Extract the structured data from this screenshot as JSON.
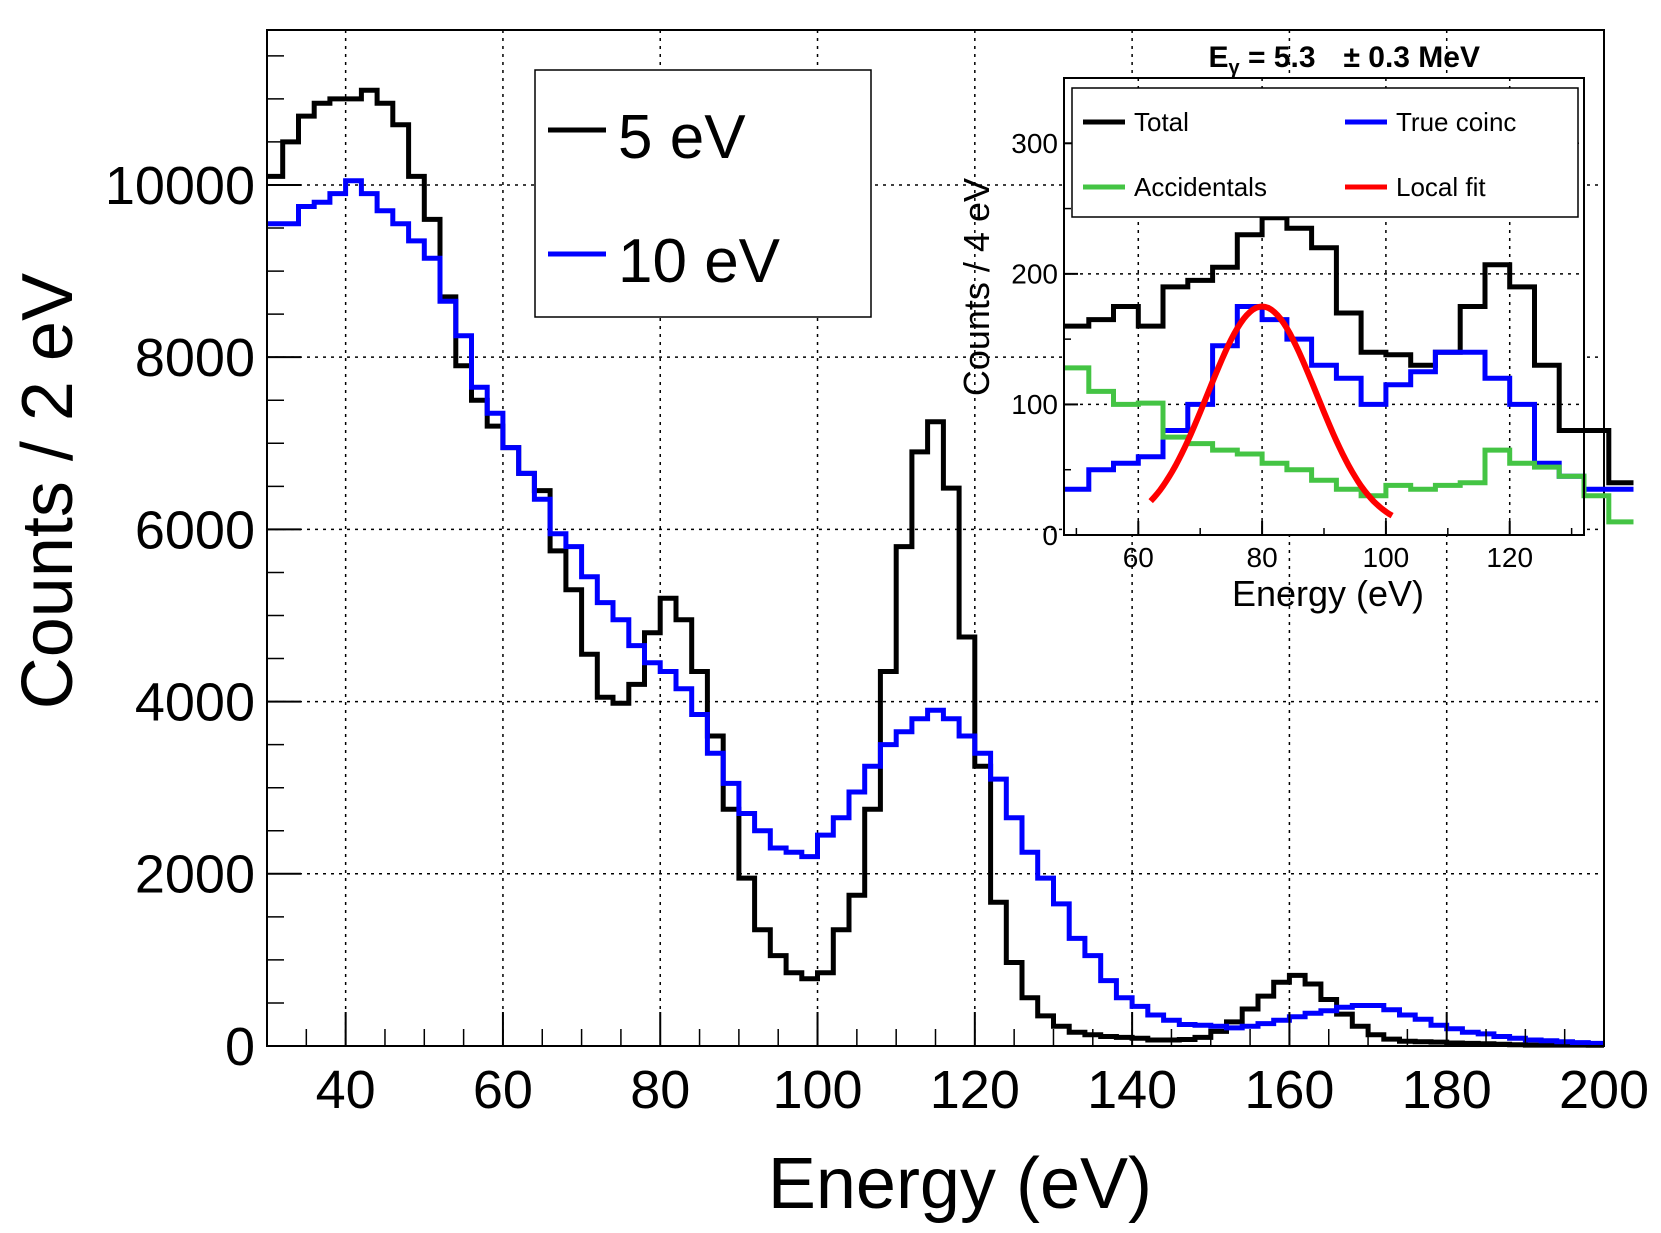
{
  "chart_data": [
    {
      "type": "step",
      "title": "",
      "xlabel": "Energy (eV)",
      "ylabel": "Counts / 2 eV",
      "xlim": [
        30,
        200
      ],
      "ylim": [
        0,
        11800
      ],
      "x_ticks": [
        40,
        60,
        80,
        100,
        120,
        140,
        160,
        180,
        200
      ],
      "x_tick_labels": [
        "40",
        "60",
        "80",
        "100",
        "120",
        "140",
        "160",
        "180",
        "200"
      ],
      "y_ticks": [
        0,
        2000,
        4000,
        6000,
        8000,
        10000
      ],
      "y_tick_labels": [
        "0",
        "2000",
        "4000",
        "6000",
        "8000",
        "10000"
      ],
      "grid": true,
      "legend_position": "top-center",
      "bin_width": 2,
      "bin_start": 30,
      "series": [
        {
          "name": "5 eV",
          "color": "#000000",
          "values": [
            10100,
            10500,
            10800,
            10950,
            11000,
            11000,
            11100,
            10950,
            10700,
            10100,
            9600,
            8700,
            7900,
            7500,
            7200,
            6950,
            6650,
            6450,
            5750,
            5300,
            4550,
            4050,
            3980,
            4200,
            4800,
            5200,
            4950,
            4350,
            3600,
            2750,
            1950,
            1350,
            1050,
            850,
            780,
            850,
            1350,
            1750,
            2750,
            4350,
            5800,
            6900,
            7250,
            6480,
            4750,
            3250,
            1670,
            970,
            560,
            350,
            230,
            160,
            130,
            110,
            100,
            90,
            70,
            70,
            75,
            100,
            170,
            280,
            430,
            580,
            740,
            820,
            720,
            540,
            370,
            230,
            130,
            80,
            55,
            50,
            45,
            35,
            30,
            25,
            20,
            15,
            10,
            10,
            10,
            10,
            8
          ]
        },
        {
          "name": "10 eV",
          "color": "#0000ff",
          "values": [
            9550,
            9550,
            9750,
            9800,
            9900,
            10050,
            9900,
            9700,
            9550,
            9350,
            9150,
            8650,
            8250,
            7650,
            7350,
            6950,
            6650,
            6350,
            5950,
            5800,
            5450,
            5150,
            4950,
            4650,
            4450,
            4350,
            4150,
            3850,
            3400,
            3050,
            2700,
            2500,
            2300,
            2250,
            2200,
            2450,
            2650,
            2950,
            3250,
            3500,
            3650,
            3800,
            3900,
            3800,
            3600,
            3400,
            3100,
            2650,
            2250,
            1950,
            1650,
            1250,
            1050,
            760,
            560,
            460,
            360,
            300,
            250,
            240,
            230,
            210,
            230,
            260,
            300,
            340,
            380,
            410,
            450,
            470,
            470,
            420,
            360,
            310,
            240,
            200,
            160,
            140,
            110,
            90,
            70,
            60,
            50,
            40,
            30
          ]
        }
      ],
      "legend": [
        "5 eV",
        "10 eV"
      ]
    },
    {
      "type": "step",
      "subtype": "inset",
      "title": "E",
      "title_sub": "γ",
      "title_rest": " = 5.3",
      "title_unc": "± 0.3 MeV",
      "xlabel": "Energy (eV)",
      "ylabel": "Counts / 4 eV",
      "xlim": [
        48,
        132
      ],
      "ylim": [
        0,
        350
      ],
      "x_ticks": [
        60,
        80,
        100,
        120
      ],
      "x_tick_labels": [
        "60",
        "80",
        "100",
        "120"
      ],
      "y_ticks": [
        0,
        100,
        200,
        300
      ],
      "y_tick_labels": [
        "0",
        "100",
        "200",
        "300"
      ],
      "grid": true,
      "bin_width": 4,
      "bin_start": 48,
      "series": [
        {
          "name": "Total",
          "color": "#000000",
          "values": [
            160,
            165,
            175,
            160,
            190,
            195,
            205,
            230,
            243,
            235,
            220,
            170,
            140,
            138,
            130,
            140,
            175,
            207,
            190,
            130,
            80,
            80,
            40
          ]
        },
        {
          "name": "True coinc",
          "color": "#0000ff",
          "values": [
            35,
            50,
            55,
            60,
            80,
            100,
            145,
            175,
            165,
            150,
            130,
            120,
            100,
            115,
            125,
            140,
            140,
            120,
            100,
            55,
            45,
            35,
            35
          ]
        },
        {
          "name": "Accidentals",
          "color": "#44c444",
          "values": [
            128,
            110,
            100,
            101,
            75,
            70,
            65,
            62,
            55,
            50,
            42,
            35,
            30,
            38,
            35,
            38,
            40,
            65,
            55,
            52,
            45,
            30,
            10
          ]
        },
        {
          "name": "Local fit",
          "color": "#ff0000",
          "kind": "gaussian",
          "range": [
            62,
            101
          ],
          "amplitude": 170,
          "mean": 80,
          "sigma": 8.8,
          "offset": 5
        }
      ],
      "legend": [
        "Total",
        "True coinc",
        "Accidentals",
        "Local fit"
      ]
    }
  ]
}
